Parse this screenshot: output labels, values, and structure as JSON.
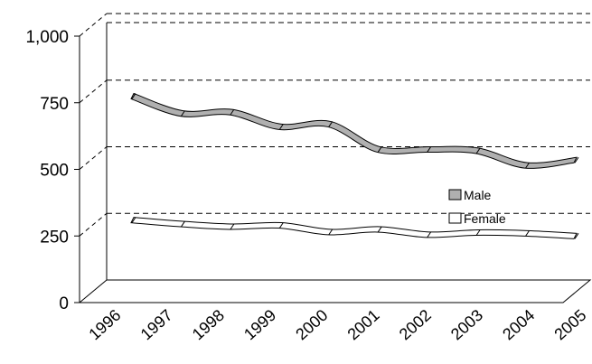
{
  "chart_data": {
    "type": "line",
    "style": "3d-ribbon",
    "categories": [
      "1996",
      "1997",
      "1998",
      "1999",
      "2000",
      "2001",
      "2002",
      "2003",
      "2004",
      "2005"
    ],
    "series": [
      {
        "name": "Male",
        "values": [
          690,
          625,
          630,
          575,
          585,
          490,
          490,
          485,
          430,
          450
        ],
        "color": "#b0b0b0"
      },
      {
        "name": "Female",
        "values": [
          225,
          210,
          200,
          205,
          180,
          190,
          170,
          178,
          175,
          165
        ],
        "color": "#ffffff"
      }
    ],
    "yticks": [
      "0",
      "250",
      "500",
      "750",
      "1,000"
    ],
    "ylim": [
      0,
      1000
    ],
    "grid": "dashed",
    "legend_position": "right"
  }
}
